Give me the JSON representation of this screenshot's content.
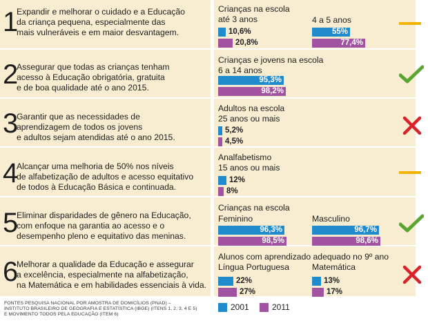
{
  "colors": {
    "y2001": "#1f8bcc",
    "y2011": "#a153a2",
    "background": "#f8ecd1",
    "ok": "#5ba533",
    "partial": "#f2b400",
    "fail": "#d8232a"
  },
  "goals": [
    {
      "number": "1",
      "text_lines": [
        "Expandir e melhorar o cuidado e a Educação",
        "da criança pequena, especialmente das",
        "mais vulneráveis e em maior desvantagem."
      ],
      "status": "partial",
      "status_icon": "dash-icon"
    },
    {
      "number": "2",
      "text_lines": [
        "Assegurar que todas as crianças tenham",
        "acesso à Educação obrigatória, gratuita",
        "e de boa qualidade até o ano 2015."
      ],
      "status": "achieved",
      "status_icon": "check-icon"
    },
    {
      "number": "3",
      "text_lines": [
        "Garantir que as necessidades de",
        "aprendizagem de todos os jovens",
        "e adultos sejam atendidas até o ano 2015."
      ],
      "status": "not-achieved",
      "status_icon": "cross-icon"
    },
    {
      "number": "4",
      "text_lines": [
        "Alcançar uma melhoria de 50% nos níveis",
        "de alfabetização de adultos e acesso equitativo",
        "de todos à Educação Básica e continuada."
      ],
      "status": "partial",
      "status_icon": "dash-icon"
    },
    {
      "number": "5",
      "text_lines": [
        "Eliminar disparidades de gênero na Educação,",
        "com enfoque na garantia ao acesso e o",
        "desempenho pleno e equitativo das meninas."
      ],
      "status": "achieved",
      "status_icon": "check-icon"
    },
    {
      "number": "6",
      "text_lines": [
        "Melhorar a qualidade da Educação e assegurar",
        "a excelência, especialmente na alfabetização,",
        "na Matemática e em habilidades essenciais à vida."
      ],
      "status": "not-achieved",
      "status_icon": "cross-icon"
    }
  ],
  "chart_data": [
    {
      "type": "bar",
      "goal": "1",
      "series_names": [
        "2001",
        "2011"
      ],
      "groups": [
        {
          "title_lines": [
            "Crianças na escola",
            "até 3 anos"
          ],
          "values": [
            10.6,
            20.8
          ],
          "labels": [
            "10,6%",
            "20,8%"
          ]
        },
        {
          "title_lines": [
            "4 a 5 anos"
          ],
          "values": [
            55,
            77.4
          ],
          "labels": [
            "55%",
            "77,4%"
          ]
        }
      ]
    },
    {
      "type": "bar",
      "goal": "2",
      "series_names": [
        "2001",
        "2011"
      ],
      "groups": [
        {
          "title_lines": [
            "Crianças e jovens na escola",
            "6 a 14 anos"
          ],
          "values": [
            95.3,
            98.2
          ],
          "labels": [
            "95,3%",
            "98,2%"
          ]
        }
      ]
    },
    {
      "type": "bar",
      "goal": "3",
      "series_names": [
        "2001",
        "2011"
      ],
      "groups": [
        {
          "title_lines": [
            "Adultos na escola",
            "25 anos ou mais"
          ],
          "values": [
            5.2,
            4.5
          ],
          "labels": [
            "5,2%",
            "4,5%"
          ]
        }
      ]
    },
    {
      "type": "bar",
      "goal": "4",
      "series_names": [
        "2001",
        "2011"
      ],
      "groups": [
        {
          "title_lines": [
            "Analfabetismo",
            "15 anos ou mais"
          ],
          "values": [
            12,
            8
          ],
          "labels": [
            "12%",
            "8%"
          ]
        }
      ]
    },
    {
      "type": "bar",
      "goal": "5",
      "series_names": [
        "2001",
        "2011"
      ],
      "header_lines": [
        "Crianças na escola"
      ],
      "groups": [
        {
          "title_lines": [
            "Feminino"
          ],
          "values": [
            96.3,
            98.5
          ],
          "labels": [
            "96,3%",
            "98,5%"
          ]
        },
        {
          "title_lines": [
            "Masculino"
          ],
          "values": [
            96.7,
            98.6
          ],
          "labels": [
            "96,7%",
            "98,6%"
          ]
        }
      ]
    },
    {
      "type": "bar",
      "goal": "6",
      "series_names": [
        "2001",
        "2011"
      ],
      "header_lines": [
        "Alunos com aprendizado adequado no 9º ano"
      ],
      "groups": [
        {
          "title_lines": [
            "Língua Portuguesa"
          ],
          "values": [
            22,
            27
          ],
          "labels": [
            "22%",
            "27%"
          ]
        },
        {
          "title_lines": [
            "Matemática"
          ],
          "values": [
            13,
            17
          ],
          "labels": [
            "13%",
            "17%"
          ]
        }
      ]
    }
  ],
  "legend": {
    "y2001": "2001",
    "y2011": "2011"
  },
  "footer_lines": [
    "FONTES PESQUISA NACIONAL POR AMOSTRA DE DOMICÍLIOS (PNAD) –",
    "INSTITUTO BRASILEIRO DE GEOGRAFIA E ESTATÍSTICA (IBGE) (ITENS 1, 2, 3, 4 E 5)",
    "E MOVIMENTO TODOS PELA EDUCAÇÃO (ITEM 6)"
  ]
}
